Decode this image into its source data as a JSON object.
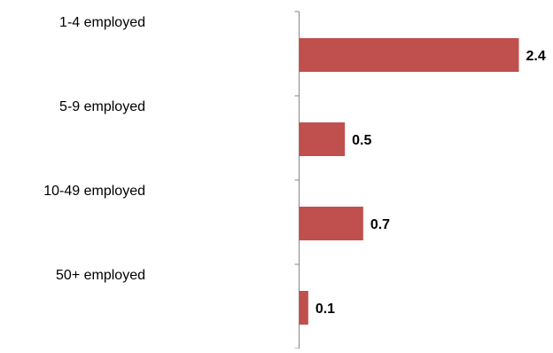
{
  "colors": {
    "bar": "#c0504d",
    "axis": "#868686",
    "text": "#000000"
  },
  "chart_data": {
    "type": "bar",
    "orientation": "horizontal",
    "categories": [
      "1-4 employed",
      "5-9 employed",
      "10-49 employed",
      "50+ employed"
    ],
    "values": [
      2.4,
      0.5,
      0.7,
      0.1
    ],
    "value_labels": [
      "2.4",
      "0.5",
      "0.7",
      "0.1"
    ],
    "title": "",
    "xlabel": "",
    "ylabel": "",
    "xlim": [
      0,
      2.4
    ],
    "grid": false,
    "legend": "none"
  }
}
